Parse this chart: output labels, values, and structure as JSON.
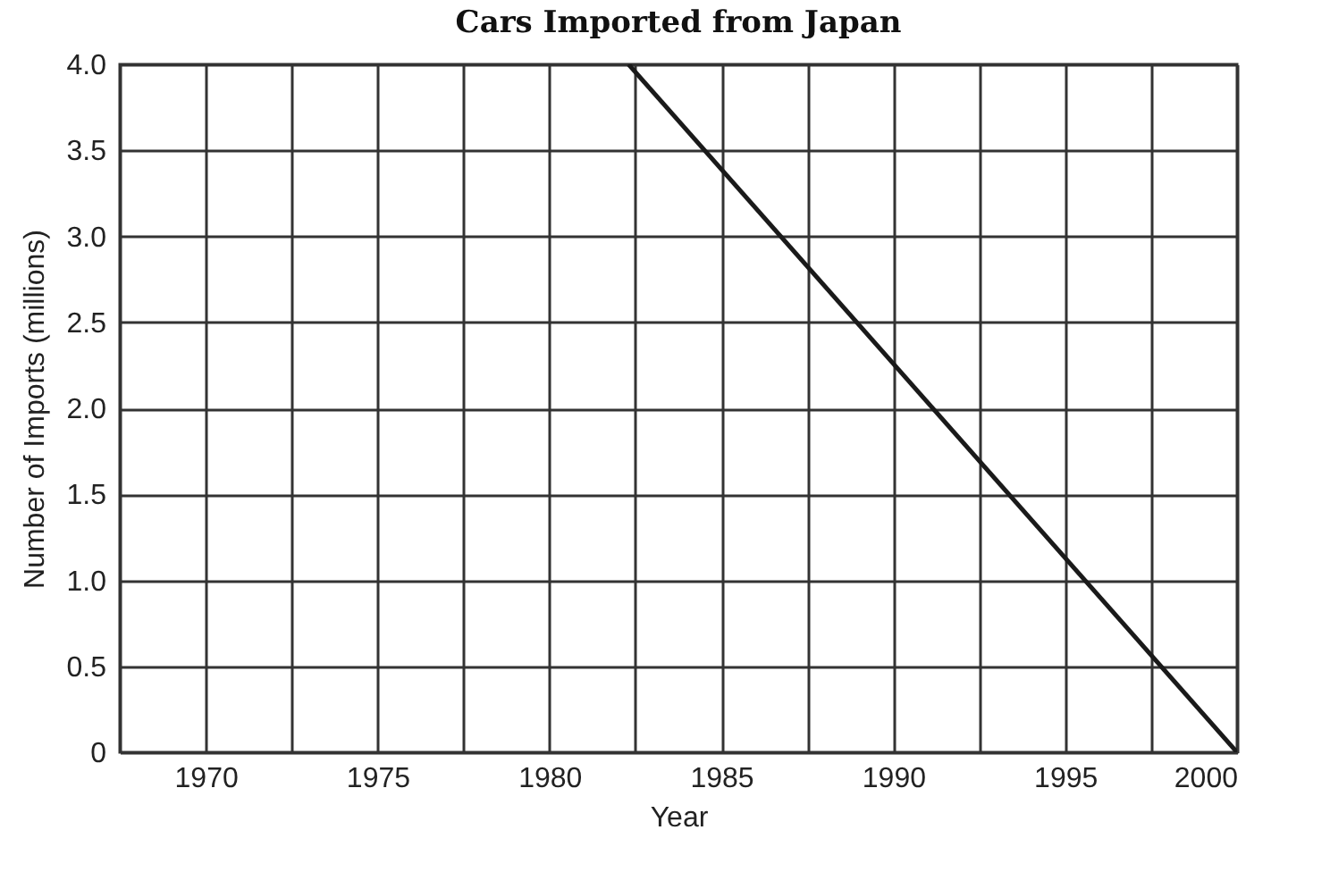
{
  "chart_data": {
    "type": "line",
    "title": "Cars Imported from Japan",
    "xlabel": "Year",
    "ylabel": "Number of Imports (millions)",
    "x": [
      1982.3,
      2000
    ],
    "series": [
      {
        "color": "#1a1a1a",
        "values": [
          4.0,
          0
        ]
      }
    ],
    "xlim": [
      1967.5,
      2000
    ],
    "xticks": [
      {
        "value": 1967.5,
        "label": null
      },
      1970,
      {
        "value": 1972.5,
        "label": null
      },
      1975,
      {
        "value": 1977.5,
        "label": null
      },
      1980,
      {
        "value": 1982.5,
        "label": null
      },
      1985,
      {
        "value": 1987.5,
        "label": null
      },
      1990,
      {
        "value": 1992.5,
        "label": null
      },
      1995,
      {
        "value": 1997.5,
        "label": null
      },
      2000
    ],
    "ylim": [
      0,
      4.0
    ],
    "yticks": [
      0,
      0.5,
      {
        "value": 1,
        "label": "1.0"
      },
      1.5,
      {
        "value": 2,
        "label": "2.0"
      },
      2.5,
      {
        "value": 3,
        "label": "3.0"
      },
      3.5,
      {
        "value": 4,
        "label": "4.0"
      }
    ],
    "grid": true,
    "marker": "none",
    "line_style": "solid"
  }
}
